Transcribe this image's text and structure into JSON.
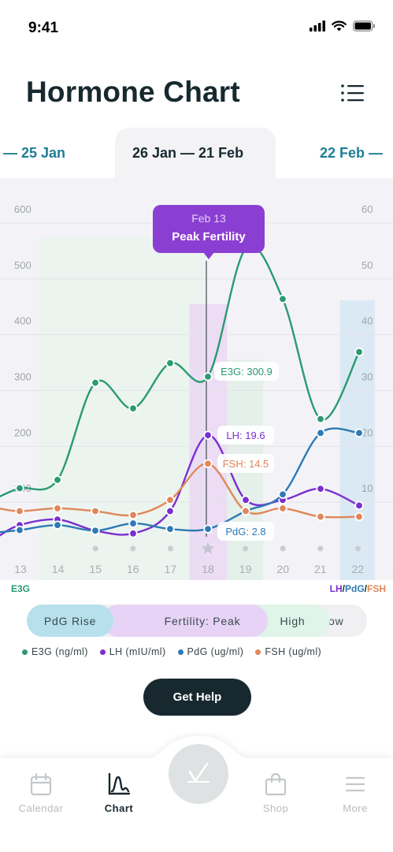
{
  "status": {
    "time": "9:41"
  },
  "header": {
    "title": "Hormone Chart"
  },
  "range": {
    "prev": "— 25 Jan",
    "current": "26 Jan — 21 Feb",
    "next": "22 Feb —"
  },
  "tooltip": {
    "date": "Feb 13",
    "title": "Peak Fertility"
  },
  "axis": {
    "left_caption": "E3G",
    "right_lh": "LH",
    "right_pdg": "PdG",
    "right_fsh": "FSH",
    "slash": "/"
  },
  "phases": [
    {
      "label": "PdG Rise",
      "color": "#b7e0ec"
    },
    {
      "label": "Fertility: Peak",
      "color": "#e7d3f5"
    },
    {
      "label": "High",
      "color": "#e0f4e9"
    },
    {
      "label": "Low",
      "color": "#f0f0f2"
    }
  ],
  "legend": [
    {
      "label": "E3G (ng/ml)",
      "color": "#2a9a72"
    },
    {
      "label": "LH (mIU/ml)",
      "color": "#7a2fd0"
    },
    {
      "label": "PdG (ug/ml)",
      "color": "#2e7ab5"
    },
    {
      "label": "FSH (ug/ml)",
      "color": "#e0875a"
    }
  ],
  "help_button": "Get Help",
  "tabs": [
    {
      "label": "Calendar",
      "icon": "calendar-icon"
    },
    {
      "label": "Chart",
      "icon": "chart-icon"
    },
    {
      "label": "Shop",
      "icon": "shopping-bag-icon"
    },
    {
      "label": "More",
      "icon": "menu-icon"
    }
  ],
  "chart_data": {
    "type": "line",
    "x": [
      12,
      13,
      14,
      15,
      16,
      17,
      18,
      19,
      20,
      21,
      22
    ],
    "tick_labels": [
      "13",
      "14",
      "15",
      "16",
      "17",
      "18",
      "19",
      "20",
      "21",
      "22",
      "2"
    ],
    "left_axis": {
      "ticks": [
        "600",
        "500",
        "400",
        "300",
        "200",
        "100"
      ],
      "ylim": [
        0,
        600
      ]
    },
    "right_axis": {
      "ticks": [
        "60",
        "50",
        "40",
        "30",
        "20",
        "10"
      ],
      "ylim": [
        0,
        60
      ]
    },
    "series": [
      {
        "name": "E3G (ng/ml)",
        "axis": "left",
        "color": "#2a9a72",
        "values": [
          85,
          101,
          116,
          290,
          244,
          325,
          300.9,
          530,
          440,
          225,
          345
        ]
      },
      {
        "name": "LH (mIU/ml)",
        "axis": "right",
        "color": "#7a2fd0",
        "values": [
          1.5,
          3.5,
          4.5,
          2.5,
          2.0,
          6.0,
          19.6,
          8.0,
          8.0,
          10.0,
          7.0
        ]
      },
      {
        "name": "PdG (ug/ml)",
        "axis": "right",
        "color": "#2e7ab5",
        "values": [
          2.2,
          2.6,
          3.5,
          2.5,
          3.8,
          2.8,
          2.8,
          6.0,
          9.0,
          20.0,
          20.0
        ]
      },
      {
        "name": "FSH (ug/ml)",
        "axis": "right",
        "color": "#e0875a",
        "values": [
          6.5,
          6.0,
          6.5,
          6.0,
          5.3,
          8.0,
          14.5,
          6.0,
          6.5,
          5.0,
          5.0
        ]
      }
    ],
    "highlight": {
      "x": 18,
      "label": "Feb 13"
    },
    "callouts": [
      {
        "text": "E3G: 300.9",
        "color": "#2a9a72"
      },
      {
        "text": "LH: 19.6",
        "color": "#7a2fd0"
      },
      {
        "text": "FSH: 14.5",
        "color": "#e0875a"
      },
      {
        "text": "PdG: 2.8",
        "color": "#2e7ab5"
      }
    ]
  }
}
